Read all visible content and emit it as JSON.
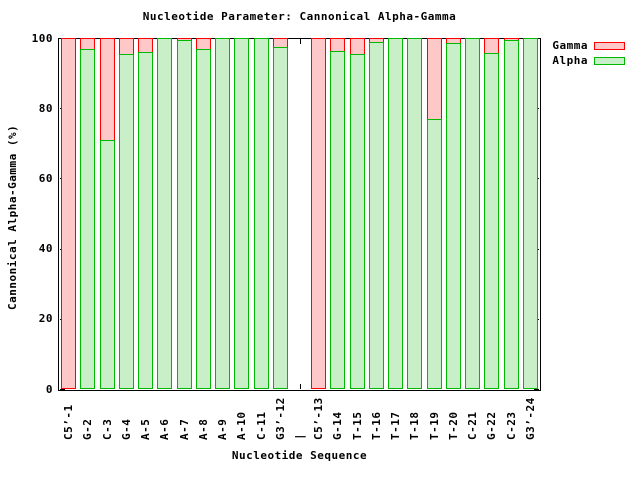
{
  "colors": {
    "background": "#ffffff",
    "axis_and_text": "#000000",
    "gamma_fill": "#ffc8c8",
    "gamma_edge": "#ff0000",
    "alpha_fill": "#c8efc8",
    "alpha_edge": "#00b800"
  },
  "chart_data": {
    "type": "bar",
    "title": "Nucleotide Parameter: Cannonical Alpha-Gamma",
    "xlabel": "Nucleotide Sequence",
    "ylabel": "Cannonical Alpha-Gamma (%)",
    "ylim": [
      0,
      100
    ],
    "yticks": [
      0,
      20,
      40,
      60,
      80,
      100
    ],
    "grid": "off",
    "legend_position": "top-right",
    "bar_style": "overlaid, gamma behind alpha, boxes with solid edges",
    "categories": [
      "C5’-1",
      "G-2",
      "C-3",
      "G-4",
      "A-5",
      "A-6",
      "A-7",
      "A-8",
      "A-9",
      "A-10",
      "C-11",
      "G3’-12",
      "|",
      "C5’-13",
      "G-14",
      "T-15",
      "T-16",
      "T-17",
      "T-18",
      "T-19",
      "T-20",
      "C-21",
      "G-22",
      "C-23",
      "G3’-24"
    ],
    "series": [
      {
        "name": "Gamma",
        "color": "#ffc8c8",
        "edge": "#ff0000",
        "values": [
          100,
          100,
          100,
          100,
          100,
          100,
          100,
          100,
          100,
          100,
          100,
          100,
          null,
          100,
          100,
          100,
          100,
          100,
          100,
          100,
          100,
          100,
          100,
          100,
          100
        ]
      },
      {
        "name": "Alpha",
        "color": "#c8efc8",
        "edge": "#00b800",
        "values": [
          0,
          97,
          71,
          95.5,
          96,
          100,
          99.3,
          97,
          100,
          100,
          100,
          97.5,
          null,
          0,
          96.2,
          95.3,
          99,
          100,
          100,
          77,
          98.6,
          100,
          95.7,
          99.4,
          100
        ]
      }
    ]
  }
}
